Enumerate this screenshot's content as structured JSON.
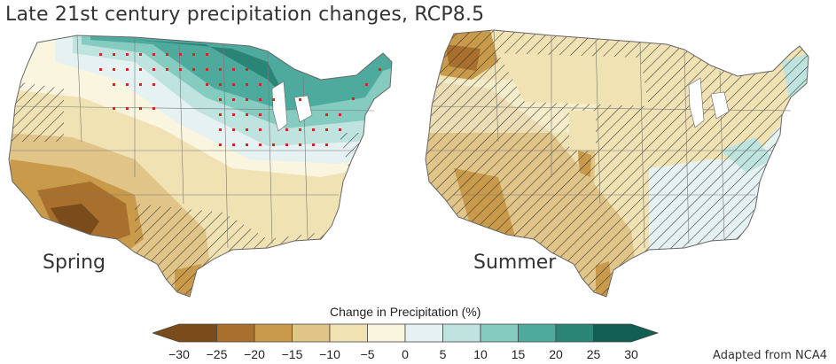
{
  "title": "Late 21st century precipitation changes, RCP8.5",
  "maps": [
    {
      "season": "Spring"
    },
    {
      "season": "Summer"
    }
  ],
  "legend": {
    "title": "Change in Precipitation (%)",
    "ticks": [
      "−30",
      "−25",
      "−20",
      "−15",
      "−10",
      "−5",
      "0",
      "5",
      "10",
      "15",
      "20",
      "25",
      "30"
    ],
    "colors": [
      "#7a4c1c",
      "#a8702c",
      "#c99a4a",
      "#e0c488",
      "#f1e2b4",
      "#faf5df",
      "#e5f2f1",
      "#bfe3de",
      "#86cbc0",
      "#4faa9e",
      "#2a8576",
      "#115e52"
    ]
  },
  "credit": "Adapted from NCA4"
}
